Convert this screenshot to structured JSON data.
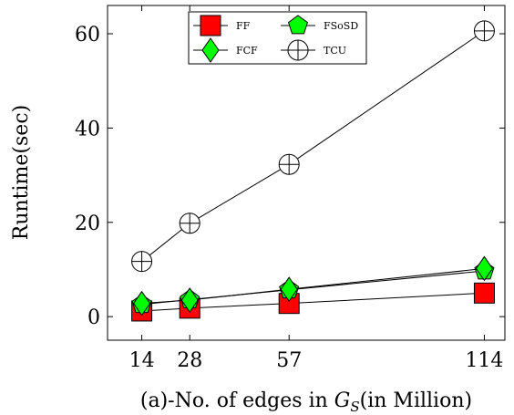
{
  "chart_data": {
    "type": "line",
    "xlabel_prefix": "(a)-No. of edges in ",
    "xlabel_var": "G",
    "xlabel_sub": "S",
    "xlabel_suffix": "(in Million)",
    "ylabel": "Runtime(sec)",
    "x": [
      14,
      28,
      57,
      114
    ],
    "x_tick_labels": [
      "14",
      "28",
      "57",
      "114"
    ],
    "xlim": [
      4,
      120
    ],
    "ylim": [
      -5,
      66
    ],
    "y_ticks": [
      0,
      20,
      40,
      60
    ],
    "y_tick_labels": [
      "0",
      "20",
      "40",
      "60"
    ],
    "legend_position": "top-center",
    "grid": false,
    "series": [
      {
        "name": "FF",
        "marker": "square",
        "color": "#ff0000",
        "values": [
          1.2,
          1.8,
          2.8,
          5.0
        ]
      },
      {
        "name": "FSoSD",
        "marker": "pentagon",
        "color": "#00ff00",
        "values": [
          2.6,
          3.6,
          5.7,
          9.7
        ]
      },
      {
        "name": "FCF",
        "marker": "diamond",
        "color": "#00ff00",
        "values": [
          2.8,
          3.5,
          5.8,
          10.2
        ]
      },
      {
        "name": "TCU",
        "marker": "circle-plus",
        "color": "#ffffff",
        "values": [
          11.7,
          19.8,
          32.3,
          60.6
        ]
      }
    ]
  }
}
